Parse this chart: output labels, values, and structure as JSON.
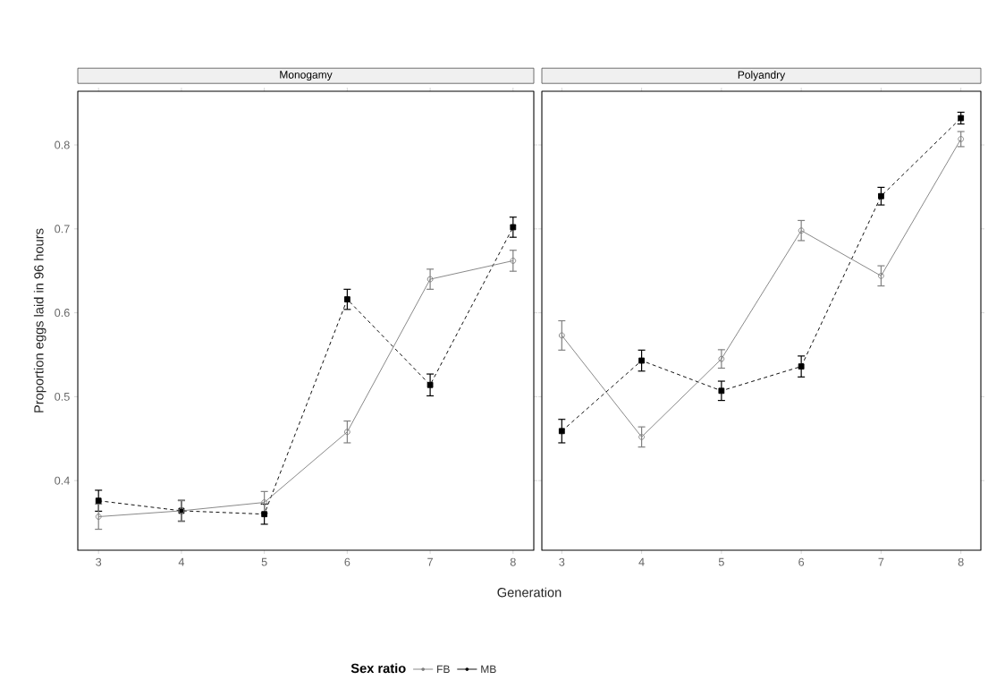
{
  "chart_data": [
    {
      "type": "line",
      "title": "Monogamy",
      "xlabel": "Generation",
      "ylabel": "Proportion eggs laid in 96 hours",
      "legend_title": "Sex ratio",
      "legend": "bottom",
      "x": [
        3,
        4,
        5,
        6,
        7,
        8
      ],
      "xlim": [
        2.75,
        8.25
      ],
      "xticks": [
        3,
        4,
        5,
        6,
        7,
        8
      ],
      "ylim": [
        0.317,
        0.864
      ],
      "yticks": [
        0.4,
        0.5,
        0.6,
        0.7,
        0.8
      ],
      "series": [
        {
          "name": "FB",
          "color": "#808080",
          "marker": "circle",
          "line_style": "solid",
          "values": [
            0.357,
            0.364,
            0.374,
            0.458,
            0.64,
            0.662
          ],
          "errors": [
            0.015,
            0.012,
            0.013,
            0.013,
            0.012,
            0.0125
          ]
        },
        {
          "name": "MB",
          "color": "#000000",
          "marker": "square",
          "line_style": "dashed",
          "values": [
            0.376,
            0.364,
            0.36,
            0.616,
            0.514,
            0.702
          ],
          "errors": [
            0.0125,
            0.0125,
            0.012,
            0.012,
            0.013,
            0.012
          ]
        }
      ]
    },
    {
      "type": "line",
      "title": "Polyandry",
      "x": [
        3,
        4,
        5,
        6,
        7,
        8
      ],
      "xlim": [
        2.75,
        8.25
      ],
      "xticks": [
        3,
        4,
        5,
        6,
        7,
        8
      ],
      "ylim": [
        0.317,
        0.864
      ],
      "yticks": [
        0.4,
        0.5,
        0.6,
        0.7,
        0.8
      ],
      "tick_labels": "x",
      "series": [
        {
          "color": "#808080",
          "marker": "circle",
          "line_style": "solid",
          "values": [
            0.573,
            0.452,
            0.545,
            0.698,
            0.644,
            0.807
          ],
          "errors": [
            0.0175,
            0.012,
            0.011,
            0.012,
            0.012,
            0.009
          ]
        },
        {
          "color": "#000000",
          "marker": "square",
          "line_style": "dashed",
          "values": [
            0.459,
            0.543,
            0.507,
            0.536,
            0.739,
            0.832
          ],
          "errors": [
            0.014,
            0.0125,
            0.0115,
            0.0125,
            0.0105,
            0.007
          ]
        }
      ]
    }
  ]
}
